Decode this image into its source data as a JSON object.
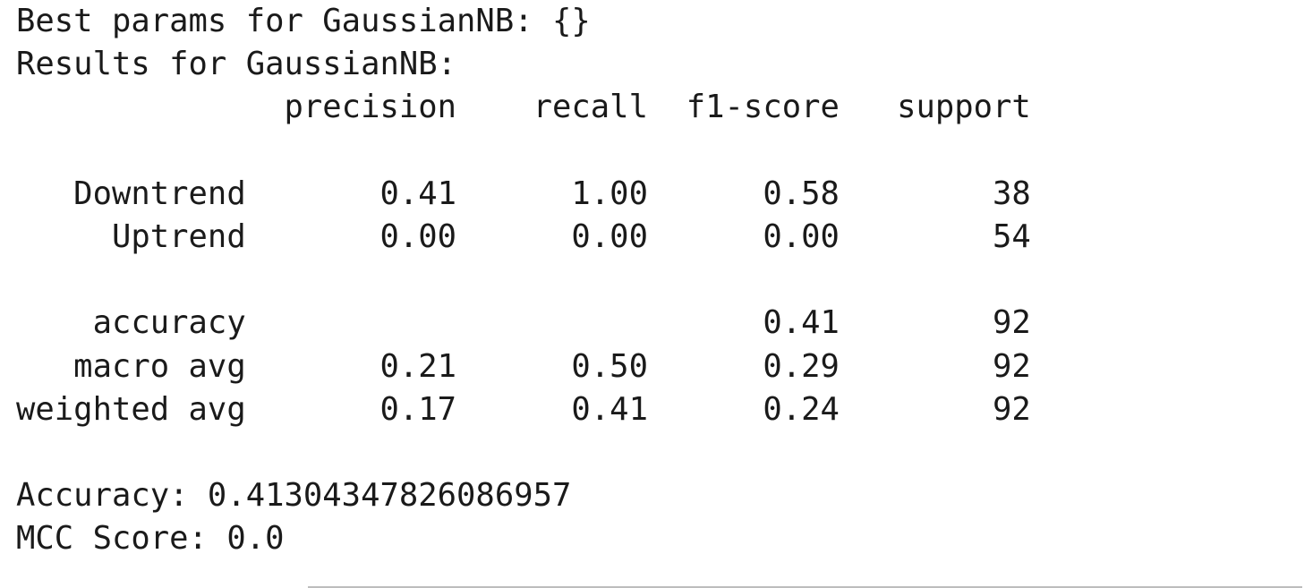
{
  "output": {
    "lines": [
      "Best params for GaussianNB: {}",
      "Results for GaussianNB:",
      "              precision    recall  f1-score   support",
      "",
      "   Downtrend       0.41      1.00      0.58        38",
      "     Uptrend       0.00      0.00      0.00        54",
      "",
      "    accuracy                           0.41        92",
      "   macro avg       0.21      0.50      0.29        92",
      "weighted avg       0.17      0.41      0.24        92",
      "",
      "Accuracy: 0.41304347826086957",
      "MCC Score: 0.0"
    ]
  }
}
